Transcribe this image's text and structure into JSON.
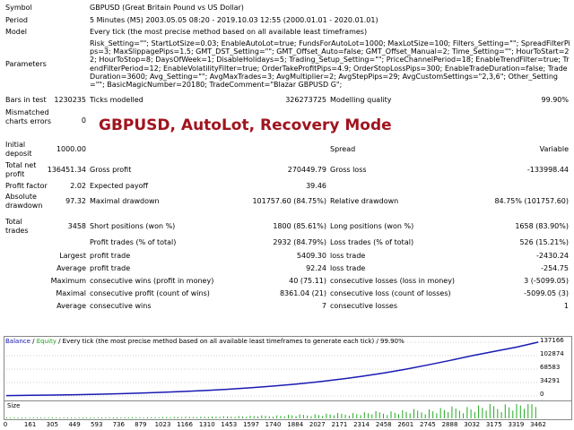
{
  "header": {
    "symbol_label": "Symbol",
    "symbol_value": "GBPUSD (Great Britain Pound vs US Dollar)",
    "period_label": "Period",
    "period_value": "5 Minutes (M5) 2003.05.05 08:20 - 2019.10.03 12:55 (2000.01.01 - 2020.01.01)",
    "model_label": "Model",
    "model_value": "Every tick (the most precise method based on all available least timeframes)",
    "parameters_label": "Parameters",
    "parameters_value": "Risk_Setting=\"\"; StartLotSize=0.03; EnableAutoLot=true; FundsForAutoLot=1000; MaxLotSize=100; Filters_Setting=\"\"; SpreadFilterPips=3; MaxSlippagePips=1.5; GMT_DST_Setting=\"\"; GMT_Offset_Auto=false; GMT_Offset_Manual=2; Time_Setting=\"\"; HourToStart=22; HourToStop=8; DaysOfWeek=1; DisableHolidays=5; Trading_Setup_Setting=\"\"; PriceChannelPeriod=18; EnableTrendFilter=true; TrendFilterPeriod=12; EnableVolatilityFilter=true; OrderTakeProfitPips=4.9; OrderStopLossPips=300; EnableTradeDuration=false; TradeDuration=3600; Avg_Setting=\"\"; AvgMaxTrades=3; AvgMultiplier=2; AvgStepPips=29; AvgCustomSettings=\"2,3,6\"; Other_Setting=\"\"; BasicMagicNumber=20180; TradeComment=\"Blazar GBPUSD G\";"
  },
  "banner": "GBPUSD, AutoLot, Recovery Mode",
  "stats": {
    "bars_label": "Bars in test",
    "bars_value": "1230235",
    "ticks_label": "Ticks modelled",
    "ticks_value": "326273725",
    "quality_label": "Modelling quality",
    "quality_value": "99.90%",
    "mismatch_label": "Mismatched charts errors",
    "mismatch_value": "0",
    "deposit_label": "Initial deposit",
    "deposit_value": "1000.00",
    "spread_label": "Spread",
    "spread_value": "Variable",
    "netprofit_label": "Total net profit",
    "netprofit_value": "136451.34",
    "grossprofit_label": "Gross profit",
    "grossprofit_value": "270449.79",
    "grossloss_label": "Gross loss",
    "grossloss_value": "-133998.44",
    "pf_label": "Profit factor",
    "pf_value": "2.02",
    "payoff_label": "Expected payoff",
    "payoff_value": "39.46",
    "absdd_label": "Absolute drawdown",
    "absdd_value": "97.32",
    "maxdd_label": "Maximal drawdown",
    "maxdd_value": "101757.60 (84.75%)",
    "reldd_label": "Relative drawdown",
    "reldd_value": "84.75% (101757.60)",
    "trades_label": "Total trades",
    "trades_value": "3458",
    "short_label": "Short positions (won %)",
    "short_value": "1800 (85.61%)",
    "long_label": "Long positions (won %)",
    "long_value": "1658 (83.90%)",
    "ptrades_label": "Profit trades (% of total)",
    "ptrades_value": "2932 (84.79%)",
    "ltrades_label": "Loss trades (% of total)",
    "ltrades_value": "526 (15.21%)",
    "largest_label": "Largest",
    "largest_pt_label": "profit trade",
    "largest_pt_value": "5409.30",
    "largest_lt_label": "loss trade",
    "largest_lt_value": "-2430.24",
    "average_label": "Average",
    "avg_pt_label": "profit trade",
    "avg_pt_value": "92.24",
    "avg_lt_label": "loss trade",
    "avg_lt_value": "-254.75",
    "maximum_label": "Maximum",
    "max_cw_label": "consecutive wins (profit in money)",
    "max_cw_value": "40 (75.11)",
    "max_cl_label": "consecutive losses (loss in money)",
    "max_cl_value": "3 (-5099.05)",
    "maximal_label": "Maximal",
    "mxl_cp_label": "consecutive profit (count of wins)",
    "mxl_cp_value": "8361.04 (21)",
    "mxl_cl_label": "consecutive loss (count of losses)",
    "mxl_cl_value": "-5099.05 (3)",
    "avg2_label": "Average",
    "avg_cw_label": "consecutive wins",
    "avg_cw_value": "7",
    "avg_cl_label": "consecutive losses",
    "avg_cl_value": "1"
  },
  "chart": {
    "legend_balance": "Balance",
    "legend_sep": " / ",
    "legend_equity": "Equity",
    "legend_rest": " / Every tick (the most precise method based on all available least timeframes to generate each tick) / 99.90%",
    "size_label": "Size",
    "colors": {
      "balance": "#1a1ab4",
      "equity": "#22aa22",
      "frame": "#888888"
    }
  },
  "chart_data": {
    "type": "line",
    "y_ticks": [
      "137166",
      "102874",
      "68583",
      "34291",
      "0"
    ],
    "x_ticks": [
      "0",
      "161",
      "305",
      "449",
      "593",
      "736",
      "879",
      "1023",
      "1166",
      "1310",
      "1453",
      "1597",
      "1740",
      "1884",
      "2027",
      "2171",
      "2314",
      "2458",
      "2601",
      "2745",
      "2888",
      "3032",
      "3175",
      "3319",
      "3462"
    ],
    "series": [
      {
        "name": "Balance",
        "x": [
          0,
          161,
          305,
          449,
          593,
          736,
          879,
          1023,
          1166,
          1310,
          1453,
          1597,
          1740,
          1884,
          2027,
          2171,
          2314,
          2458,
          2601,
          2745,
          2888,
          3032,
          3175,
          3319,
          3458
        ],
        "y": [
          1000,
          1600,
          2400,
          3300,
          4400,
          5800,
          7400,
          9300,
          11600,
          14300,
          17400,
          21100,
          25400,
          30400,
          36200,
          42800,
          50300,
          59000,
          68600,
          79500,
          91000,
          103000,
          114000,
          124800,
          137451
        ]
      }
    ],
    "xlim": [
      0,
      3462
    ],
    "ylim": [
      0,
      137166
    ]
  }
}
